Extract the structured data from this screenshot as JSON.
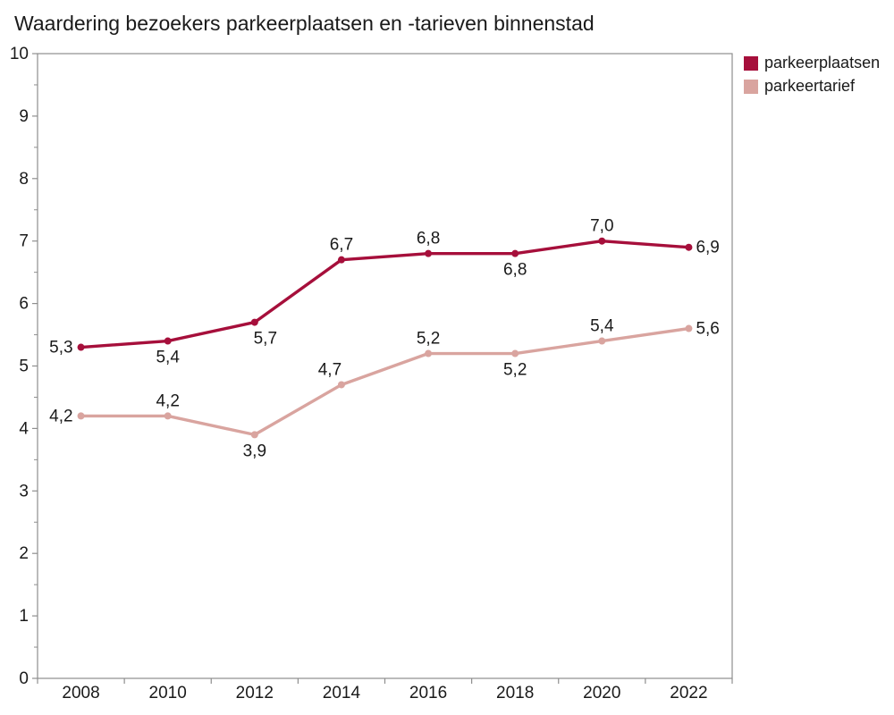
{
  "title": "Waardering bezoekers parkeerplaatsen en -tarieven binnenstad",
  "colors": {
    "background": "#ffffff",
    "axis": "#8e8e8e",
    "text": "#1a1a1a"
  },
  "chart_data": {
    "type": "line",
    "title": "Waardering bezoekers parkeerplaatsen en -tarieven binnenstad",
    "categories": [
      "2008",
      "2010",
      "2012",
      "2014",
      "2016",
      "2018",
      "2020",
      "2022"
    ],
    "series": [
      {
        "name": "parkeerplaatsen",
        "color": "#a60f3b",
        "values": [
          5.3,
          5.4,
          5.7,
          6.7,
          6.8,
          6.8,
          7.0,
          6.9
        ],
        "labels": [
          "5,3",
          "5,4",
          "5,7",
          "6,7",
          "6,8",
          "6,8",
          "7,0",
          "6,9"
        ],
        "label_positions": [
          "left",
          "below",
          "below-right",
          "above",
          "above",
          "below",
          "above",
          "right"
        ]
      },
      {
        "name": "parkeertarief",
        "color": "#d9a49f",
        "values": [
          4.2,
          4.2,
          3.9,
          4.7,
          5.2,
          5.2,
          5.4,
          5.6
        ],
        "labels": [
          "4,2",
          "4,2",
          "3,9",
          "4,7",
          "5,2",
          "5,2",
          "5,4",
          "5,6"
        ],
        "label_positions": [
          "left",
          "above",
          "below",
          "above-left",
          "above",
          "below",
          "above",
          "right"
        ]
      }
    ],
    "xlabel": "",
    "ylabel": "",
    "ylim": [
      0,
      10
    ],
    "yticks": [
      0,
      1,
      2,
      3,
      4,
      5,
      6,
      7,
      8,
      9,
      10
    ],
    "minor_ytick_step": 0.5,
    "grid": false,
    "legend_position": "top-right",
    "marker": "circle",
    "decimal_separator": ","
  }
}
